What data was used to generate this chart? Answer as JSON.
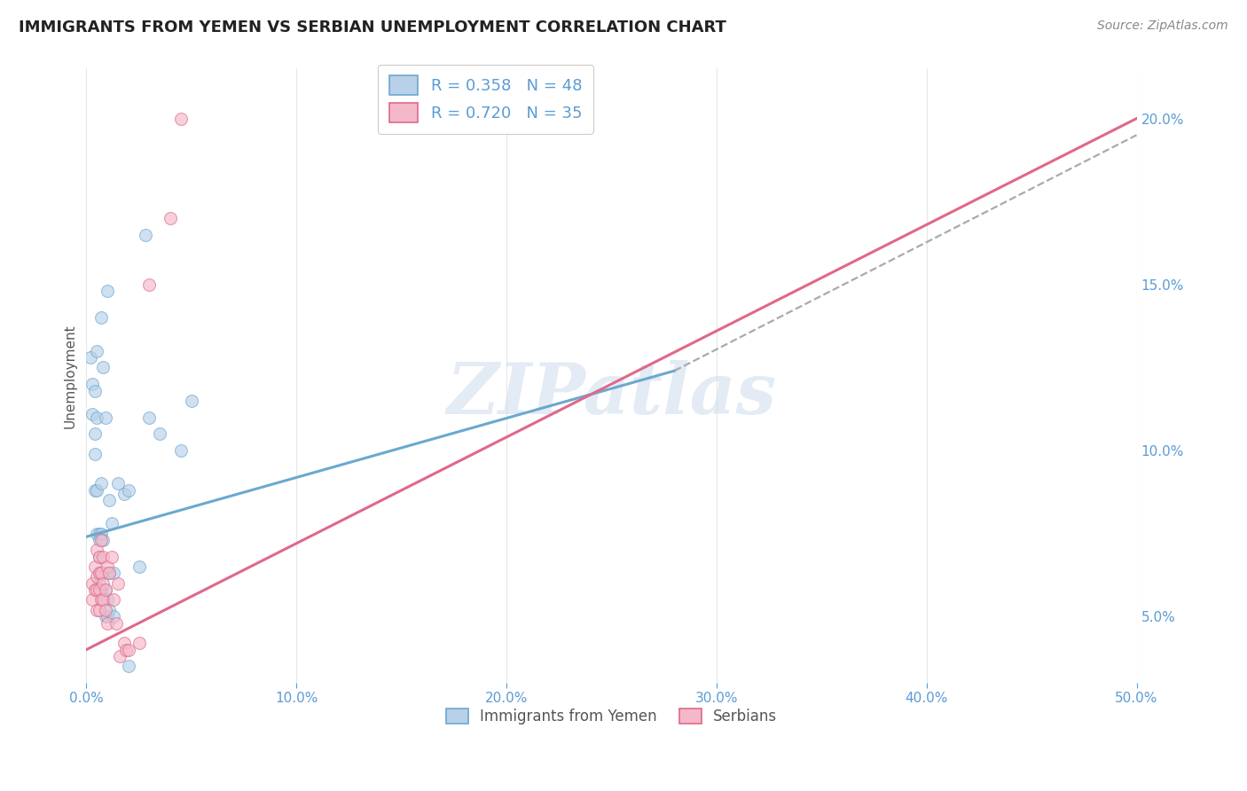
{
  "title": "IMMIGRANTS FROM YEMEN VS SERBIAN UNEMPLOYMENT CORRELATION CHART",
  "source": "Source: ZipAtlas.com",
  "xlabel_ticks": [
    "0.0%",
    "10.0%",
    "20.0%",
    "30.0%",
    "40.0%",
    "50.0%"
  ],
  "xlabel_vals": [
    0.0,
    10.0,
    20.0,
    30.0,
    40.0,
    50.0
  ],
  "ylabel_ticks": [
    "5.0%",
    "10.0%",
    "15.0%",
    "20.0%"
  ],
  "ylabel_vals": [
    5.0,
    10.0,
    15.0,
    20.0
  ],
  "ylabel_label": "Unemployment",
  "xlim": [
    0.0,
    50.0
  ],
  "ylim": [
    3.0,
    21.5
  ],
  "legend_entries": [
    {
      "label": "R = 0.358   N = 48",
      "color": "#a8c4e0"
    },
    {
      "label": "R = 0.720   N = 35",
      "color": "#f4a0b0"
    }
  ],
  "legend_label_blue": "Immigrants from Yemen",
  "legend_label_pink": "Serbians",
  "watermark": "ZIPatlas",
  "blue_scatter": [
    [
      0.2,
      12.8
    ],
    [
      0.3,
      12.0
    ],
    [
      0.3,
      11.1
    ],
    [
      0.4,
      11.8
    ],
    [
      0.4,
      10.5
    ],
    [
      0.4,
      9.9
    ],
    [
      0.4,
      8.8
    ],
    [
      0.5,
      13.0
    ],
    [
      0.5,
      11.0
    ],
    [
      0.5,
      8.8
    ],
    [
      0.5,
      7.5
    ],
    [
      0.6,
      7.5
    ],
    [
      0.6,
      7.3
    ],
    [
      0.6,
      6.8
    ],
    [
      0.6,
      6.3
    ],
    [
      0.6,
      6.0
    ],
    [
      0.7,
      14.0
    ],
    [
      0.7,
      9.0
    ],
    [
      0.7,
      7.5
    ],
    [
      0.7,
      6.3
    ],
    [
      0.7,
      5.8
    ],
    [
      0.8,
      12.5
    ],
    [
      0.8,
      7.3
    ],
    [
      0.8,
      6.3
    ],
    [
      0.8,
      5.5
    ],
    [
      0.9,
      11.0
    ],
    [
      0.9,
      5.8
    ],
    [
      0.9,
      5.0
    ],
    [
      1.0,
      14.8
    ],
    [
      1.0,
      6.3
    ],
    [
      1.0,
      5.5
    ],
    [
      1.0,
      5.0
    ],
    [
      1.1,
      8.5
    ],
    [
      1.1,
      6.3
    ],
    [
      1.1,
      5.2
    ],
    [
      1.2,
      7.8
    ],
    [
      1.3,
      6.3
    ],
    [
      1.3,
      5.0
    ],
    [
      1.5,
      9.0
    ],
    [
      1.8,
      8.7
    ],
    [
      2.0,
      8.8
    ],
    [
      2.5,
      6.5
    ],
    [
      3.0,
      11.0
    ],
    [
      3.5,
      10.5
    ],
    [
      4.5,
      10.0
    ],
    [
      5.0,
      11.5
    ],
    [
      2.8,
      16.5
    ],
    [
      2.0,
      3.5
    ]
  ],
  "pink_scatter": [
    [
      0.3,
      6.0
    ],
    [
      0.3,
      5.5
    ],
    [
      0.4,
      6.5
    ],
    [
      0.4,
      5.8
    ],
    [
      0.5,
      7.0
    ],
    [
      0.5,
      6.2
    ],
    [
      0.5,
      5.8
    ],
    [
      0.5,
      5.2
    ],
    [
      0.6,
      6.8
    ],
    [
      0.6,
      6.3
    ],
    [
      0.6,
      5.8
    ],
    [
      0.6,
      5.2
    ],
    [
      0.7,
      7.3
    ],
    [
      0.7,
      6.3
    ],
    [
      0.7,
      5.5
    ],
    [
      0.8,
      6.8
    ],
    [
      0.8,
      6.0
    ],
    [
      0.8,
      5.5
    ],
    [
      0.9,
      5.8
    ],
    [
      0.9,
      5.2
    ],
    [
      1.0,
      6.5
    ],
    [
      1.0,
      4.8
    ],
    [
      1.1,
      6.3
    ],
    [
      1.2,
      6.8
    ],
    [
      1.3,
      5.5
    ],
    [
      1.4,
      4.8
    ],
    [
      1.5,
      6.0
    ],
    [
      1.6,
      3.8
    ],
    [
      1.8,
      4.2
    ],
    [
      1.9,
      4.0
    ],
    [
      2.0,
      4.0
    ],
    [
      2.5,
      4.2
    ],
    [
      3.0,
      15.0
    ],
    [
      4.0,
      17.0
    ],
    [
      4.5,
      20.0
    ]
  ],
  "blue_line_solid": {
    "x0": 0.0,
    "y0": 7.4,
    "x1": 28.0,
    "y1": 12.4
  },
  "blue_line_dash": {
    "x0": 28.0,
    "y0": 12.4,
    "x1": 50.0,
    "y1": 19.5
  },
  "pink_line_solid": {
    "x0": 0.0,
    "y0": 4.0,
    "x1": 50.0,
    "y1": 20.0
  },
  "scatter_size": 100,
  "scatter_alpha": 0.65,
  "blue_color": "#b8d0e8",
  "pink_color": "#f5b8c8",
  "blue_edge": "#6aa8d0",
  "pink_edge": "#e06888",
  "title_fontsize": 13,
  "background_color": "#ffffff",
  "grid_color": "#d8d8d8"
}
